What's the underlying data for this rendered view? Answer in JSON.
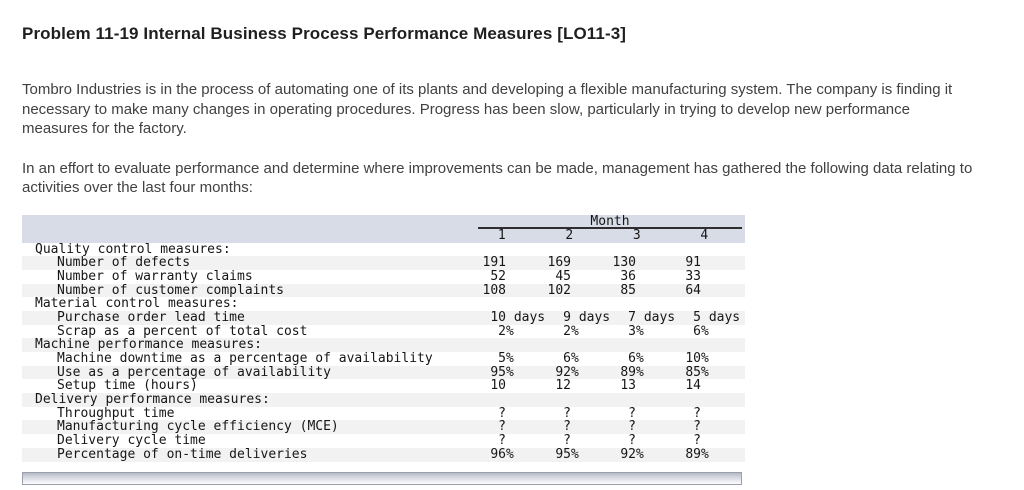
{
  "page": {
    "title": "Problem 11-19 Internal Business Process Performance Measures [LO11-3]",
    "paragraph1": "Tombro Industries is in the process of automating one of its plants and developing a flexible manufacturing system. The company is finding it necessary to make many changes in operating procedures. Progress has been slow, particularly in trying to develop new performance measures for the factory.",
    "paragraph2": "In an effort to evaluate performance and determine where improvements can be made, management has gathered the following data relating to activities over the last four months:"
  },
  "table": {
    "month_header": "Month",
    "month_columns": [
      "1",
      "2",
      "3",
      "4"
    ],
    "colors": {
      "header_band": "#d8dce6",
      "row_stripe": "#f2f2f2"
    },
    "rows": [
      {
        "type": "category",
        "label": "Quality control measures:"
      },
      {
        "type": "item",
        "label": "Number of defects",
        "values": [
          {
            "num": "191",
            "suf": ""
          },
          {
            "num": "169",
            "suf": ""
          },
          {
            "num": "130",
            "suf": ""
          },
          {
            "num": "91",
            "suf": ""
          }
        ]
      },
      {
        "type": "item",
        "label": "Number of warranty claims",
        "values": [
          {
            "num": "52",
            "suf": ""
          },
          {
            "num": "45",
            "suf": ""
          },
          {
            "num": "36",
            "suf": ""
          },
          {
            "num": "33",
            "suf": ""
          }
        ]
      },
      {
        "type": "item",
        "label": "Number of customer complaints",
        "values": [
          {
            "num": "108",
            "suf": ""
          },
          {
            "num": "102",
            "suf": ""
          },
          {
            "num": "85",
            "suf": ""
          },
          {
            "num": "64",
            "suf": ""
          }
        ]
      },
      {
        "type": "category",
        "label": "Material control measures:"
      },
      {
        "type": "item",
        "label": "Purchase order lead time",
        "values": [
          {
            "num": "10",
            "suf": " days"
          },
          {
            "num": "9",
            "suf": " days"
          },
          {
            "num": "7",
            "suf": " days"
          },
          {
            "num": "5",
            "suf": " days"
          }
        ]
      },
      {
        "type": "item",
        "label": "Scrap as a percent of total cost",
        "values": [
          {
            "num": "2",
            "suf": "%"
          },
          {
            "num": "2",
            "suf": "%"
          },
          {
            "num": "3",
            "suf": "%"
          },
          {
            "num": "6",
            "suf": "%"
          }
        ]
      },
      {
        "type": "category",
        "label": "Machine performance measures:"
      },
      {
        "type": "item",
        "label": "Machine downtime as a percentage of availability",
        "values": [
          {
            "num": "5",
            "suf": "%"
          },
          {
            "num": "6",
            "suf": "%"
          },
          {
            "num": "6",
            "suf": "%"
          },
          {
            "num": "10",
            "suf": "%"
          }
        ]
      },
      {
        "type": "item",
        "label": "Use as a percentage of availability",
        "values": [
          {
            "num": "95",
            "suf": "%"
          },
          {
            "num": "92",
            "suf": "%"
          },
          {
            "num": "89",
            "suf": "%"
          },
          {
            "num": "85",
            "suf": "%"
          }
        ]
      },
      {
        "type": "item",
        "label": "Setup time (hours)",
        "values": [
          {
            "num": "10",
            "suf": ""
          },
          {
            "num": "12",
            "suf": ""
          },
          {
            "num": "13",
            "suf": ""
          },
          {
            "num": "14",
            "suf": ""
          }
        ]
      },
      {
        "type": "category",
        "label": "Delivery performance measures:"
      },
      {
        "type": "item",
        "label": "Throughput time",
        "values": [
          {
            "num": "?",
            "suf": ""
          },
          {
            "num": "?",
            "suf": ""
          },
          {
            "num": "?",
            "suf": ""
          },
          {
            "num": "?",
            "suf": ""
          }
        ]
      },
      {
        "type": "item",
        "label": "Manufacturing cycle efficiency (MCE)",
        "values": [
          {
            "num": "?",
            "suf": ""
          },
          {
            "num": "?",
            "suf": ""
          },
          {
            "num": "?",
            "suf": ""
          },
          {
            "num": "?",
            "suf": ""
          }
        ]
      },
      {
        "type": "item",
        "label": "Delivery cycle time",
        "values": [
          {
            "num": "?",
            "suf": ""
          },
          {
            "num": "?",
            "suf": ""
          },
          {
            "num": "?",
            "suf": ""
          },
          {
            "num": "?",
            "suf": ""
          }
        ]
      },
      {
        "type": "item",
        "label": "Percentage of on-time deliveries",
        "values": [
          {
            "num": "96",
            "suf": "%"
          },
          {
            "num": "95",
            "suf": "%"
          },
          {
            "num": "92",
            "suf": "%"
          },
          {
            "num": "89",
            "suf": "%"
          }
        ]
      }
    ]
  }
}
